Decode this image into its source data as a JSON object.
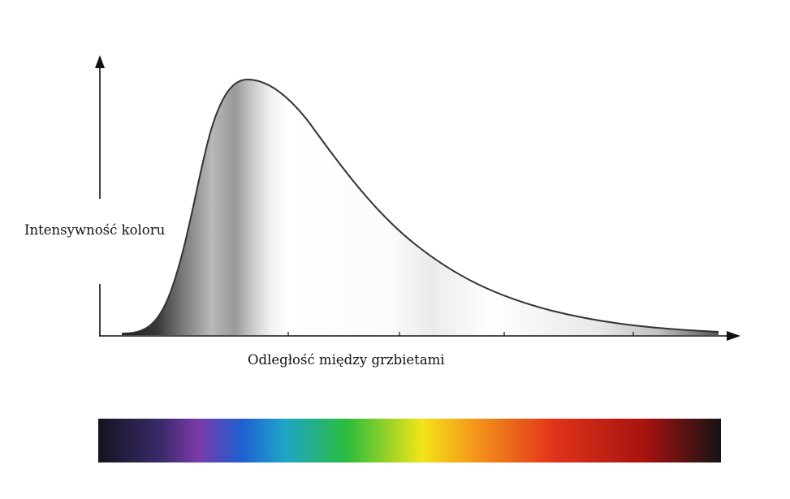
{
  "diagram": {
    "y_axis_label": "Intensywność koloru",
    "x_axis_label": "Odległość między grzbietami",
    "curve_shape": "right-skewed peak",
    "curve_fill": "grayscale gradient",
    "spectrum_colors": [
      "#151320",
      "#3a2a6a",
      "#7a3aa8",
      "#1f5fd0",
      "#1ea6c8",
      "#2bbd3c",
      "#f3e417",
      "#f59a1a",
      "#e2341a",
      "#a5120f",
      "#151315"
    ]
  }
}
